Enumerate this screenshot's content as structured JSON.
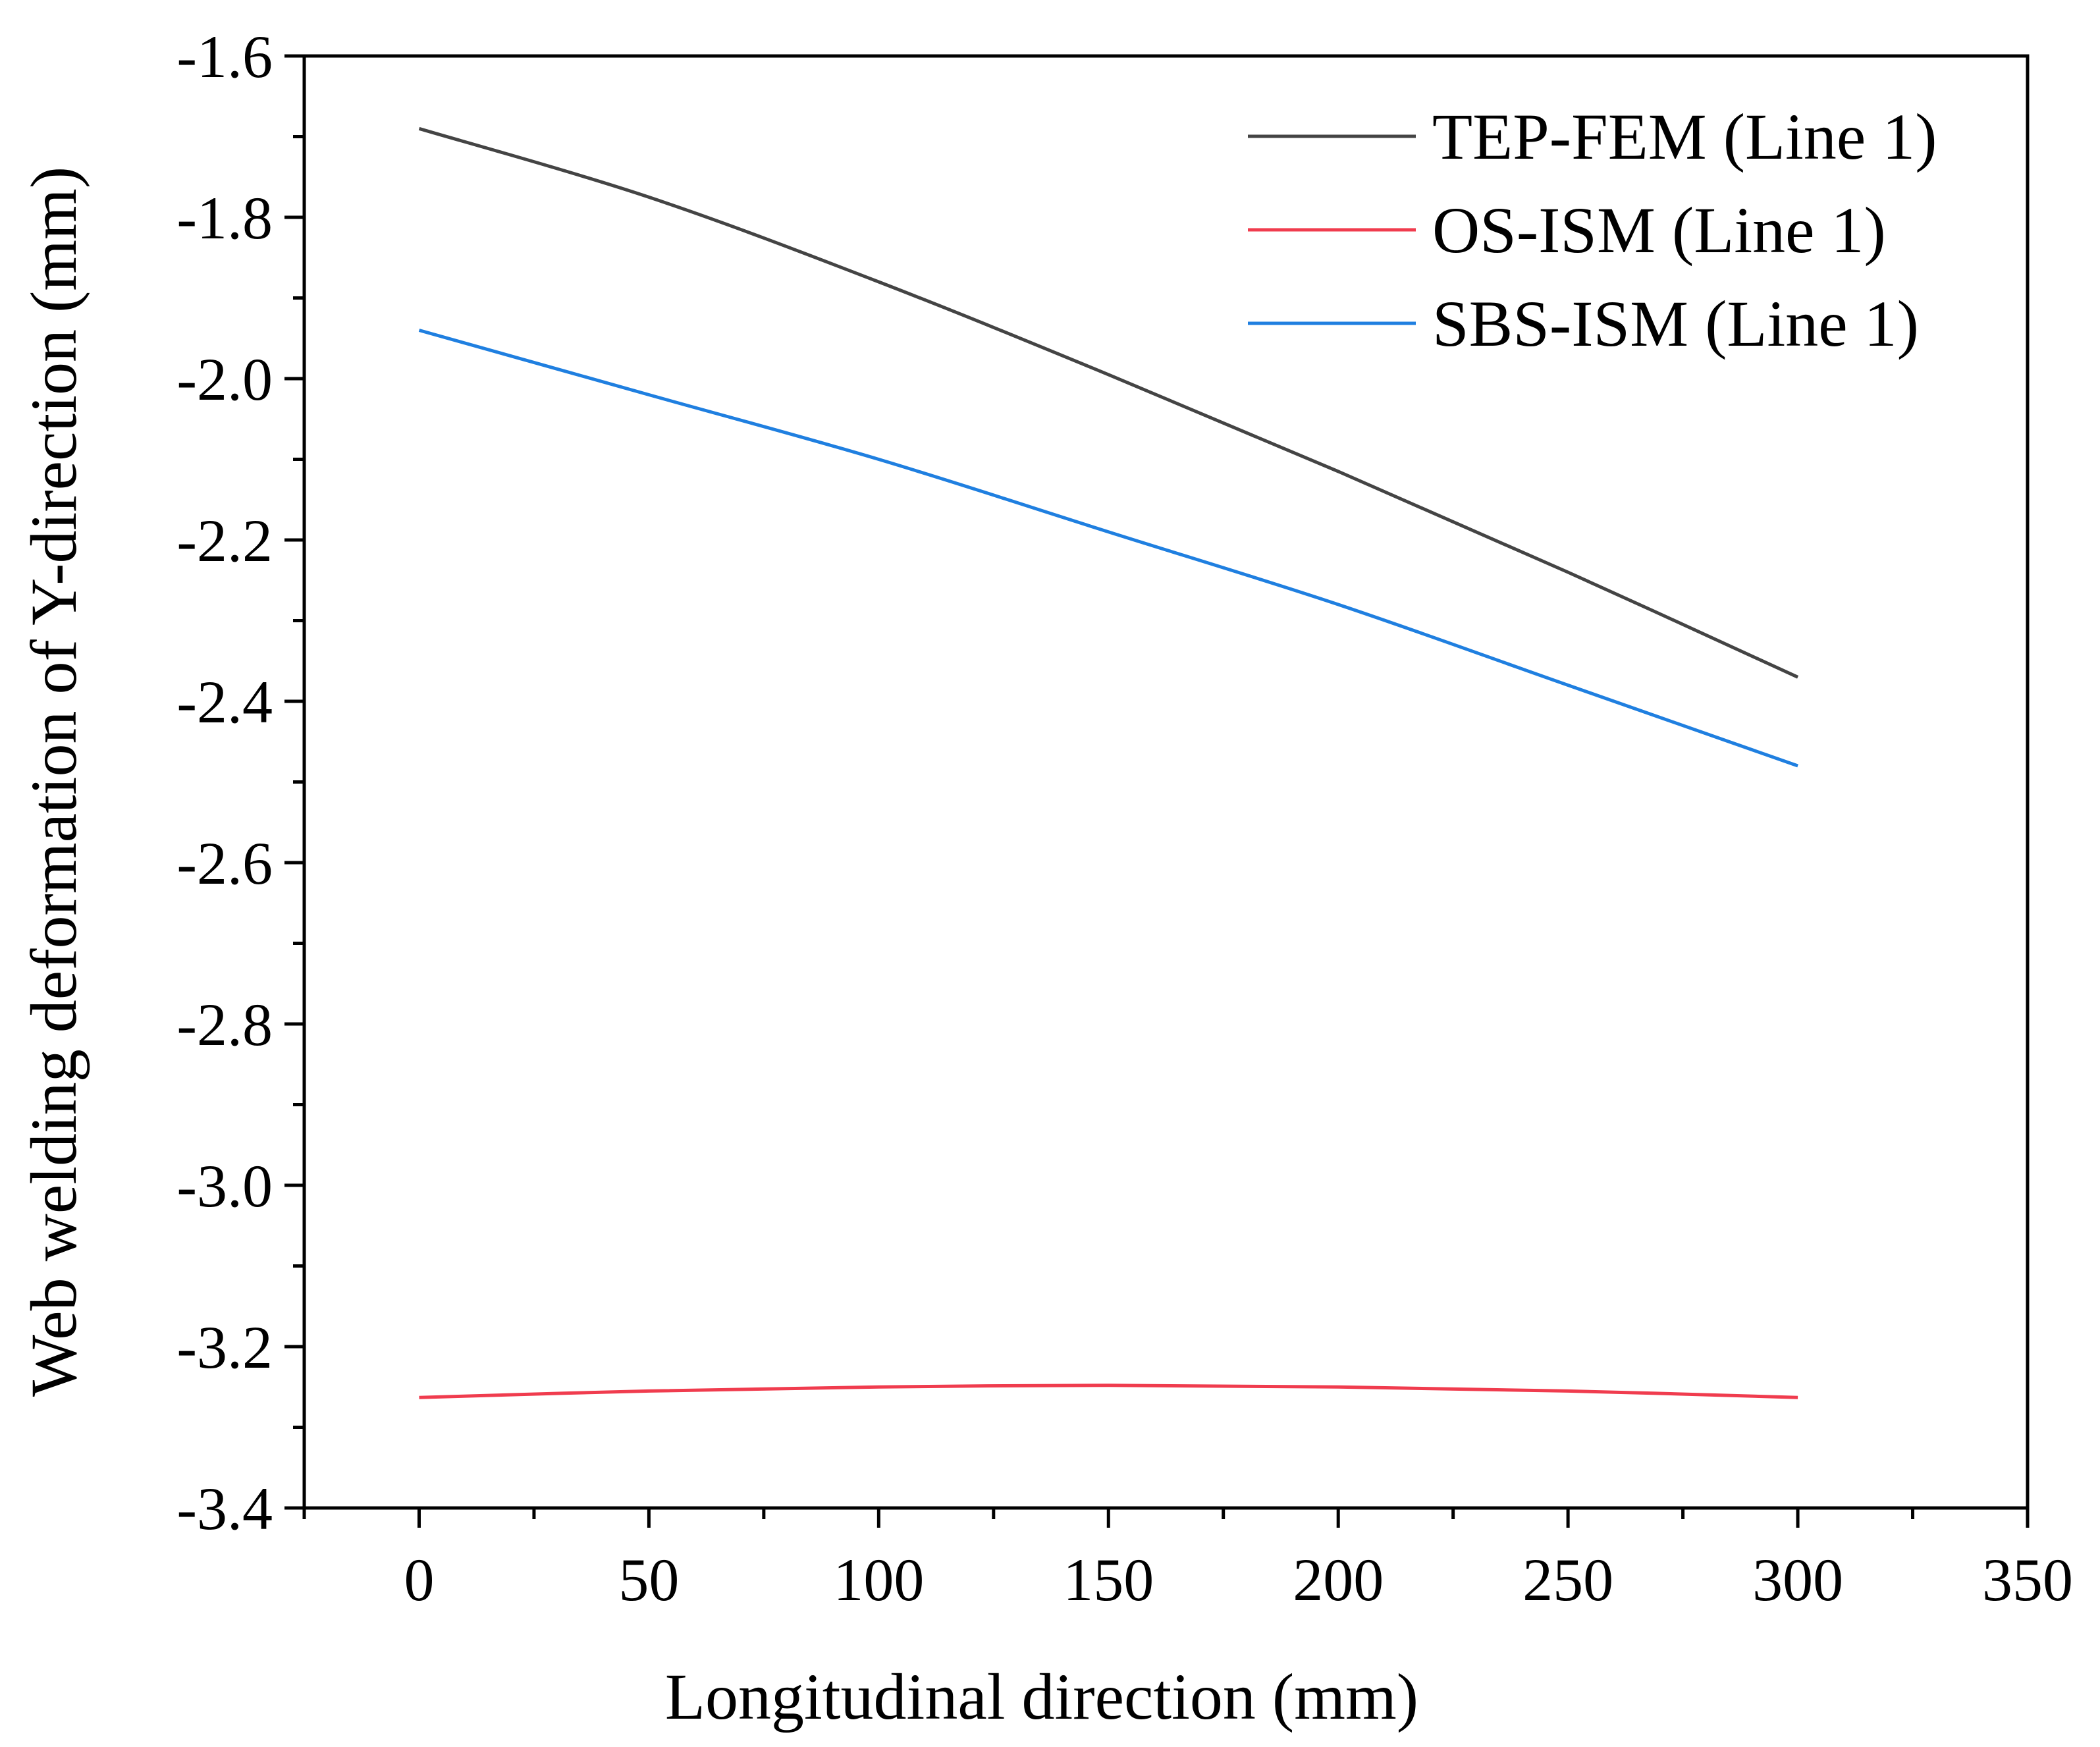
{
  "chart_data": {
    "type": "line",
    "title": "",
    "xlabel": "Longitudinal direction (mm)",
    "ylabel": "Web welding deformation of Y-direction (mm)",
    "xlim": [
      -25,
      350
    ],
    "ylim": [
      -3.4,
      -1.6
    ],
    "xticks": [
      0,
      50,
      100,
      150,
      200,
      250,
      300,
      350
    ],
    "xtick_labels": [
      "0",
      "50",
      "100",
      "150",
      "200",
      "250",
      "300",
      "350"
    ],
    "yticks": [
      -3.4,
      -3.2,
      -3.0,
      -2.8,
      -2.6,
      -2.4,
      -2.2,
      -2.0,
      -1.8,
      -1.6
    ],
    "ytick_labels": [
      "-3.4",
      "-3.2",
      "-3.0",
      "-2.8",
      "-2.6",
      "-2.4",
      "-2.2",
      "-2.0",
      "-1.8",
      "-1.6"
    ],
    "grid": false,
    "legend_position": "top-right",
    "x": [
      0,
      50,
      100,
      150,
      200,
      250,
      300
    ],
    "series": [
      {
        "name": "TEP-FEM (Line 1)",
        "color": "#444444",
        "values": [
          -1.69,
          -1.775,
          -1.88,
          -1.995,
          -2.115,
          -2.24,
          -2.37
        ]
      },
      {
        "name": "OS-ISM (Line 1)",
        "color": "#f03c4e",
        "values": [
          -3.263,
          -3.255,
          -3.25,
          -3.248,
          -3.25,
          -3.255,
          -3.263
        ]
      },
      {
        "name": "SBS-ISM (Line 1)",
        "color": "#1f7fe0",
        "values": [
          -1.94,
          -2.02,
          -2.1,
          -2.19,
          -2.28,
          -2.38,
          -2.48
        ]
      }
    ]
  }
}
